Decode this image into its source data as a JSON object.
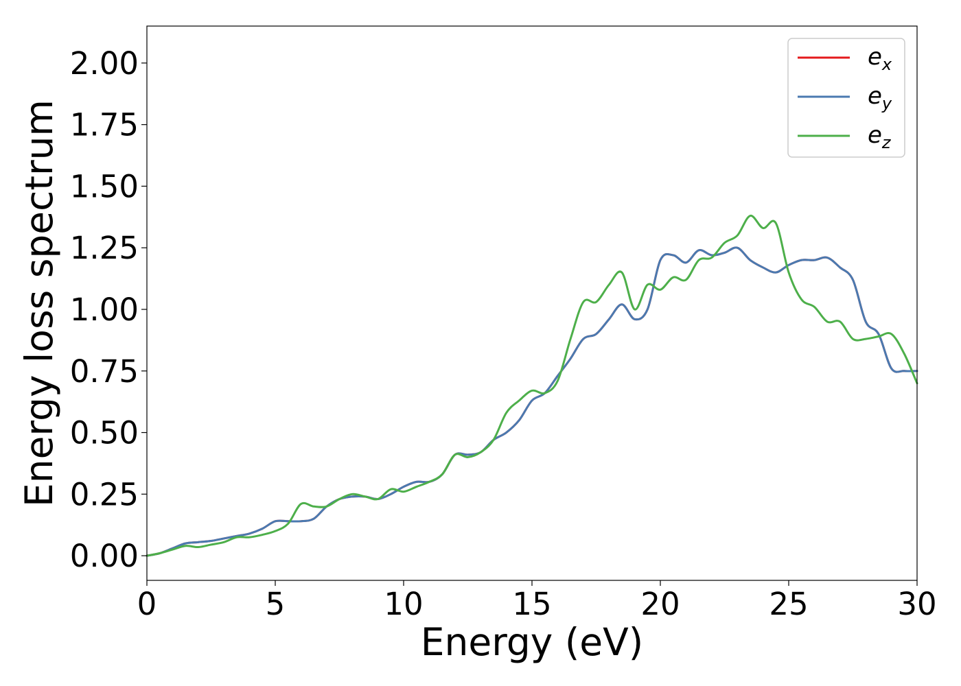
{
  "chart_data": {
    "type": "line",
    "title": "",
    "xlabel": "Energy (eV)",
    "ylabel": "Energy loss spectrum",
    "xlim": [
      0,
      30
    ],
    "ylim": [
      -0.1,
      2.15
    ],
    "xticks": [
      "0",
      "5",
      "10",
      "15",
      "20",
      "25",
      "30"
    ],
    "yticks": [
      "0.00",
      "0.25",
      "0.50",
      "0.75",
      "1.00",
      "1.25",
      "1.50",
      "1.75",
      "2.00"
    ],
    "grid": false,
    "legend": {
      "placement": "top-right",
      "entries": [
        {
          "base": "e",
          "sub": "x",
          "color": "#e41a1c"
        },
        {
          "base": "e",
          "sub": "y",
          "color": "#4a7ab0"
        },
        {
          "base": "e",
          "sub": "z",
          "color": "#4daf4a"
        }
      ]
    },
    "series": [
      {
        "name": "e_x",
        "color": "#e41a1c",
        "x": [
          0,
          0.5,
          1,
          1.5,
          2,
          2.5,
          3,
          3.5,
          4,
          4.5,
          5,
          5.5,
          6,
          6.5,
          7,
          7.5,
          8,
          8.5,
          9,
          9.5,
          10,
          10.5,
          11,
          11.5,
          12,
          12.5,
          13,
          13.5,
          14,
          14.5,
          15,
          15.5,
          16,
          16.5,
          17,
          17.5,
          18,
          18.5,
          19,
          19.5,
          20,
          20.5,
          21,
          21.5,
          22,
          22.5,
          23,
          23.5,
          24,
          24.5,
          25,
          25.5,
          26,
          26.5,
          27,
          27.5,
          28,
          28.5,
          29,
          29.5,
          30
        ],
        "y": [
          0.0,
          0.01,
          0.03,
          0.05,
          0.055,
          0.06,
          0.07,
          0.08,
          0.09,
          0.11,
          0.14,
          0.14,
          0.14,
          0.15,
          0.2,
          0.23,
          0.24,
          0.24,
          0.23,
          0.25,
          0.28,
          0.3,
          0.3,
          0.33,
          0.41,
          0.41,
          0.42,
          0.47,
          0.5,
          0.55,
          0.63,
          0.66,
          0.73,
          0.8,
          0.88,
          0.9,
          0.96,
          1.02,
          0.96,
          1.0,
          1.2,
          1.22,
          1.19,
          1.24,
          1.22,
          1.23,
          1.25,
          1.2,
          1.17,
          1.15,
          1.18,
          1.2,
          1.2,
          1.21,
          1.17,
          1.12,
          0.95,
          0.9,
          0.76,
          0.75,
          0.75
        ]
      },
      {
        "name": "e_y",
        "color": "#4a7ab0",
        "x": [
          0,
          0.5,
          1,
          1.5,
          2,
          2.5,
          3,
          3.5,
          4,
          4.5,
          5,
          5.5,
          6,
          6.5,
          7,
          7.5,
          8,
          8.5,
          9,
          9.5,
          10,
          10.5,
          11,
          11.5,
          12,
          12.5,
          13,
          13.5,
          14,
          14.5,
          15,
          15.5,
          16,
          16.5,
          17,
          17.5,
          18,
          18.5,
          19,
          19.5,
          20,
          20.5,
          21,
          21.5,
          22,
          22.5,
          23,
          23.5,
          24,
          24.5,
          25,
          25.5,
          26,
          26.5,
          27,
          27.5,
          28,
          28.5,
          29,
          29.5,
          30
        ],
        "y": [
          0.0,
          0.01,
          0.03,
          0.05,
          0.055,
          0.06,
          0.07,
          0.08,
          0.09,
          0.11,
          0.14,
          0.14,
          0.14,
          0.15,
          0.2,
          0.23,
          0.24,
          0.24,
          0.23,
          0.25,
          0.28,
          0.3,
          0.3,
          0.33,
          0.41,
          0.41,
          0.42,
          0.47,
          0.5,
          0.55,
          0.63,
          0.66,
          0.73,
          0.8,
          0.88,
          0.9,
          0.96,
          1.02,
          0.96,
          1.0,
          1.2,
          1.22,
          1.19,
          1.24,
          1.22,
          1.23,
          1.25,
          1.2,
          1.17,
          1.15,
          1.18,
          1.2,
          1.2,
          1.21,
          1.17,
          1.12,
          0.95,
          0.9,
          0.76,
          0.75,
          0.75
        ]
      },
      {
        "name": "e_z",
        "color": "#4daf4a",
        "x": [
          0,
          0.5,
          1,
          1.5,
          2,
          2.5,
          3,
          3.5,
          4,
          4.5,
          5,
          5.5,
          6,
          6.5,
          7,
          7.5,
          8,
          8.5,
          9,
          9.5,
          10,
          10.5,
          11,
          11.5,
          12,
          12.5,
          13,
          13.5,
          14,
          14.5,
          15,
          15.5,
          16,
          16.5,
          17,
          17.5,
          18,
          18.5,
          19,
          19.5,
          20,
          20.5,
          21,
          21.5,
          22,
          22.5,
          23,
          23.5,
          24,
          24.5,
          25,
          25.5,
          26,
          26.5,
          27,
          27.5,
          28,
          28.5,
          29,
          29.5,
          30
        ],
        "y": [
          0.0,
          0.01,
          0.025,
          0.04,
          0.035,
          0.045,
          0.055,
          0.075,
          0.075,
          0.085,
          0.1,
          0.13,
          0.21,
          0.2,
          0.2,
          0.23,
          0.25,
          0.24,
          0.23,
          0.27,
          0.26,
          0.28,
          0.3,
          0.33,
          0.41,
          0.4,
          0.42,
          0.47,
          0.58,
          0.63,
          0.67,
          0.66,
          0.71,
          0.88,
          1.03,
          1.03,
          1.1,
          1.15,
          1.0,
          1.1,
          1.08,
          1.13,
          1.12,
          1.2,
          1.21,
          1.27,
          1.3,
          1.38,
          1.33,
          1.35,
          1.15,
          1.04,
          1.01,
          0.95,
          0.95,
          0.88,
          0.88,
          0.89,
          0.9,
          0.82,
          0.7
        ]
      }
    ]
  }
}
